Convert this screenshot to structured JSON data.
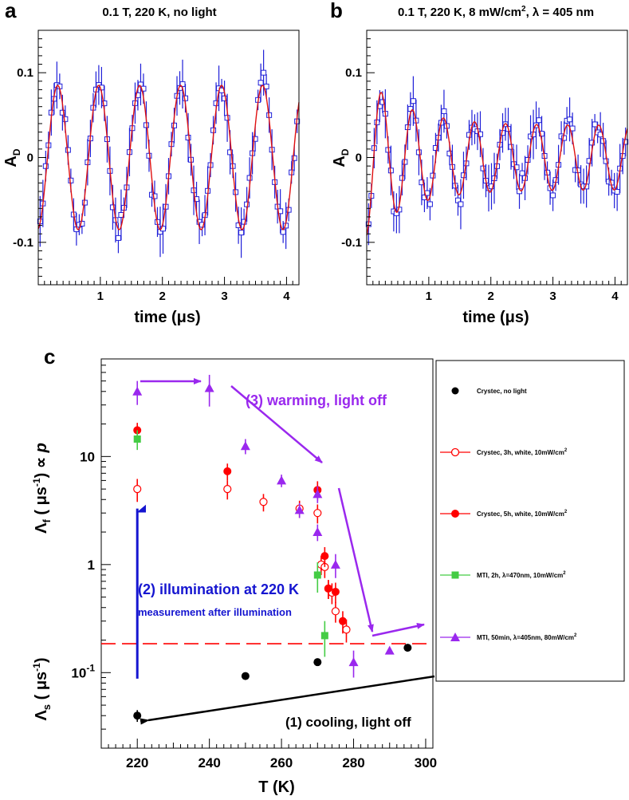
{
  "panels": {
    "a": {
      "letter": "a",
      "title": "0.1 T, 220 K, no light"
    },
    "b": {
      "letter": "b",
      "title_prefix": "0.1 T, 220 K, 8 mW/cm",
      "title_sup": "2",
      "title_suffix": ", λ = 405 nm"
    },
    "c": {
      "letter": "c"
    }
  },
  "colors": {
    "data_blue": "#1f1fd8",
    "fit_red": "#e01010",
    "black": "#000000",
    "red": "#ff0000",
    "green": "#44cc44",
    "purple": "#9a28ee",
    "blue_arrow": "#1515d0"
  },
  "chart_data": [
    {
      "type": "scatter",
      "panel": "a",
      "title": "0.1 T, 220 K, no light",
      "xlabel": "time (μs)",
      "ylabel": "A_D",
      "xlim": [
        0,
        4.2
      ],
      "ylim": [
        -0.15,
        0.15
      ],
      "xticks": [
        "1",
        "2",
        "3",
        "4"
      ],
      "yticks": [
        "0.1",
        "0",
        "-0.1"
      ],
      "fit": {
        "amplitude": 0.085,
        "period_us": 0.66,
        "phase_rad": 3.3,
        "relaxation_per_us": 0.0
      },
      "series": [
        {
          "name": "data",
          "x": [],
          "y": [],
          "err": []
        }
      ]
    },
    {
      "type": "scatter",
      "panel": "b",
      "title": "0.1 T, 220 K, 8 mW/cm2, λ = 405 nm",
      "xlabel": "time (μs)",
      "ylabel": "A_D",
      "xlim": [
        0,
        4.2
      ],
      "ylim": [
        -0.15,
        0.15
      ],
      "xticks": [
        "1",
        "2",
        "3",
        "4"
      ],
      "yticks": [
        "0.1",
        "0",
        "-0.1"
      ],
      "fit": {
        "amplitude_fast": 0.055,
        "rate_fast_per_us": 1.5,
        "amplitude_slow": 0.038,
        "period_us": 0.5,
        "phase_rad": 3.3
      },
      "series": [
        {
          "name": "data",
          "x": [],
          "y": [],
          "err": []
        }
      ]
    },
    {
      "type": "scatter",
      "panel": "c",
      "xlabel": "T (K)",
      "ylabel_upper": "Λf ( μs-1) ∝ p",
      "ylabel_lower": "Λs ( μs-1)",
      "xlim": [
        210,
        302
      ],
      "ylim": [
        0.02,
        80
      ],
      "yscale": "log",
      "xticks": [
        "220",
        "240",
        "260",
        "280",
        "300"
      ],
      "yticks": [
        "10-1",
        "1",
        "10"
      ],
      "reference_line_y": 0.185,
      "series": [
        {
          "name": "Crystec, no light",
          "marker": "filled-circle",
          "color": "#000000",
          "x": [
            220,
            250,
            270,
            295
          ],
          "y": [
            0.04,
            0.093,
            0.125,
            0.17
          ],
          "err": [
            0.005,
            0,
            0,
            0
          ]
        },
        {
          "name": "Crystec, 3h, white, 10mW/cm2",
          "marker": "open-circle",
          "color": "#ff0000",
          "x": [
            220,
            245,
            255,
            265,
            270,
            271,
            272,
            273,
            274,
            275,
            278
          ],
          "y": [
            5.0,
            5.0,
            3.8,
            3.3,
            3.0,
            1.0,
            0.95,
            0.6,
            0.55,
            0.37,
            0.25
          ],
          "err": [
            1.2,
            1.0,
            0.7,
            0.6,
            0.6,
            0.2,
            0.2,
            0.12,
            0.12,
            0.08,
            0.06
          ]
        },
        {
          "name": "Crystec, 5h, white, 10mW/cm2",
          "marker": "filled-circle",
          "color": "#ff0000",
          "x": [
            220,
            245,
            270,
            272,
            273,
            275,
            277
          ],
          "y": [
            17.5,
            7.3,
            4.9,
            1.2,
            0.6,
            0.56,
            0.3
          ],
          "err": [
            3,
            1.3,
            1.0,
            0.25,
            0.12,
            0.12,
            0.07
          ]
        },
        {
          "name": "MTI, 2h, λ=470nm, 10mW/cm2",
          "marker": "filled-square",
          "color": "#44cc44",
          "x": [
            220,
            270,
            272
          ],
          "y": [
            14.5,
            0.8,
            0.22
          ],
          "err": [
            3,
            0.25,
            0.08
          ]
        },
        {
          "name": "MTI, 50min, λ=405nm, 80mW/cm2",
          "marker": "filled-triangle",
          "color": "#9a28ee",
          "x": [
            220,
            240,
            250,
            260,
            265,
            270,
            270,
            275,
            280,
            290
          ],
          "y": [
            40,
            43,
            12.5,
            6.0,
            3.2,
            2.0,
            4.5,
            1.0,
            0.125,
            0.16
          ],
          "err": [
            10,
            14,
            2.0,
            0.8,
            0.5,
            0.35,
            0.8,
            0.25,
            0.035,
            0
          ]
        }
      ],
      "annotations": [
        "(1) cooling, light off",
        "(2) illumination at 220 K",
        "measurement after illumination",
        "(3) warming, light off"
      ]
    }
  ],
  "legend": {
    "entries": [
      {
        "label": "Crystec,  no light"
      },
      {
        "label_prefix": "Crystec, 3h, white, 10mW/cm",
        "sup": "2"
      },
      {
        "label_prefix": "Crystec, 5h, white, 10mW/cm",
        "sup": "2"
      },
      {
        "label_prefix": "MTI, 2h, λ=470nm, 10mW/cm",
        "sup": "2"
      },
      {
        "label_prefix": "MTI, 50min, λ=405nm, 80mW/cm",
        "sup": "2"
      }
    ]
  },
  "axes_text": {
    "ad_main": "A",
    "ad_sub": "D",
    "time_label": "time (μs)",
    "t_label": "T (K)",
    "lf_main": "Λ",
    "lf_sub": "f",
    "lf_rest1": " ( μs",
    "lf_sup": "-1",
    "lf_rest2": ") ∝ ",
    "lf_p": "p",
    "ls_main": "Λ",
    "ls_sub": "s",
    "ls_rest1": " ( μs",
    "ls_sup": "-1",
    "ls_rest2": ")",
    "tick_10m1_base": "10",
    "tick_10m1_exp": "-1"
  },
  "annotations": {
    "cooling": "(1) cooling, light off",
    "illum": "(2) illumination at 220 K",
    "measure": "measurement after illumination",
    "warming": "(3) warming, light off"
  }
}
